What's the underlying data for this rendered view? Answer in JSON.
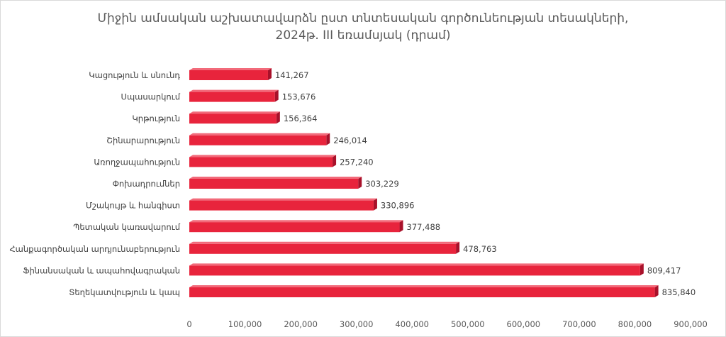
{
  "chart_data": {
    "type": "bar",
    "orientation": "horizontal",
    "title_line1": "Միջին ամսական աշխատավարձն ըստ տնտեսական գործունեության տեսակների,",
    "title_line2": "2024թ. III եռամսյակ (դրամ)",
    "categories": [
      "Կացություն և սնունդ",
      "Սպասարկում",
      "Կրթություն",
      "Շինարարություն",
      "Առողջապահություն",
      "Փոխադրումներ",
      "Մշակույթ և հանգիստ",
      "Պետական կառավարում",
      "Հանքագործական արդյունաբերություն",
      "Ֆինանսական և ապահովագրական",
      "Տեղեկատվություն և կապ"
    ],
    "values": [
      141267,
      153676,
      156364,
      246014,
      257240,
      303229,
      330896,
      377488,
      478763,
      809417,
      835840
    ],
    "value_labels": [
      "141,267",
      "153,676",
      "156,364",
      "246,014",
      "257,240",
      "303,229",
      "330,896",
      "377,488",
      "478,763",
      "809,417",
      "835,840"
    ],
    "xlim": [
      0,
      900000
    ],
    "x_ticks": [
      0,
      100000,
      200000,
      300000,
      400000,
      500000,
      600000,
      700000,
      800000,
      900000
    ],
    "x_tick_labels": [
      "0",
      "100,000",
      "200,000",
      "300,000",
      "400,000",
      "500,000",
      "600,000",
      "700,000",
      "800,000",
      "900,000"
    ],
    "grid": false,
    "legend": "none",
    "bar_color": "#e8243c",
    "bar_shadow_color": "#a8112a"
  }
}
